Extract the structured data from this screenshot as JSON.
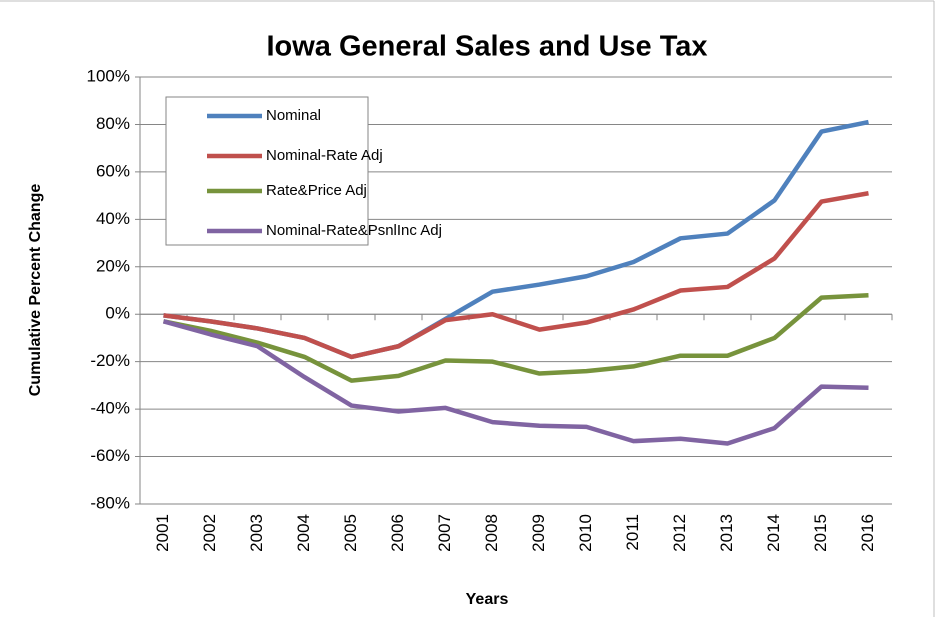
{
  "chart_data": {
    "type": "line",
    "title": "Iowa General Sales and Use Tax",
    "x_label": "Years",
    "y_label": "Cumulative Percent Change",
    "categories": [
      "2001",
      "2002",
      "2003",
      "2004",
      "2005",
      "2006",
      "2007",
      "2008",
      "2009",
      "2010",
      "2011",
      "2012",
      "2013",
      "2014",
      "2015",
      "2016"
    ],
    "series": [
      {
        "name": "Nominal",
        "color": "#4f81bd",
        "values": [
          -0.5,
          -3,
          -6,
          -10,
          -18,
          -13.5,
          -2,
          9.5,
          12.5,
          16,
          22,
          32,
          34,
          48,
          77,
          81
        ]
      },
      {
        "name": "Nominal-Rate Adj",
        "color": "#c0504d",
        "values": [
          -0.5,
          -3,
          -6,
          -10,
          -18,
          -13.5,
          -2.5,
          0,
          -6.5,
          -3.5,
          2,
          10,
          11.5,
          23.5,
          47.5,
          51
        ]
      },
      {
        "name": "Rate&Price Adj",
        "color": "#77933c",
        "values": [
          -3,
          -7,
          -12,
          -18,
          -28,
          -26,
          -19.5,
          -20,
          -25,
          -24,
          -22,
          -17.5,
          -17.5,
          -10,
          7,
          8
        ]
      },
      {
        "name": "Nominal-Rate&PsnlInc Adj",
        "color": "#8064a2",
        "values": [
          -3,
          -8.5,
          -13.5,
          -26.5,
          -38.5,
          -41,
          -39.5,
          -45.5,
          -47,
          -47.5,
          -53.5,
          -52.5,
          -54.5,
          -48,
          -30.5,
          -31
        ]
      }
    ],
    "ylim": [
      -80,
      100
    ],
    "yticks": [
      {
        "value": -80,
        "label": "-80%"
      },
      {
        "value": -60,
        "label": "-60%"
      },
      {
        "value": -40,
        "label": "-40%"
      },
      {
        "value": -20,
        "label": "-20%"
      },
      {
        "value": 0,
        "label": "0%"
      },
      {
        "value": 20,
        "label": "20%"
      },
      {
        "value": 40,
        "label": "40%"
      },
      {
        "value": 60,
        "label": "60%"
      },
      {
        "value": 80,
        "label": "80%"
      },
      {
        "value": 100,
        "label": "100%"
      }
    ],
    "grid": true,
    "legend": "upper-left"
  }
}
